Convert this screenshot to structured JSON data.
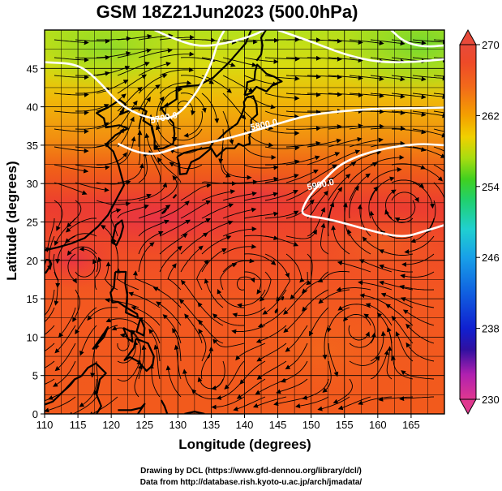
{
  "title": "GSM 18Z21Jun2023 (500.0hPa)",
  "credits": [
    "Drawing by DCL (https://www.gfd-dennou.org/library/dcl/)",
    "Data from http://database.rish.kyoto-u.ac.jp/arch/jmadata/"
  ],
  "map": {
    "xlabel": "Longitude (degrees)",
    "ylabel": "Latitude  (degrees)",
    "lon_range": [
      110,
      170
    ],
    "lat_range": [
      0,
      50
    ],
    "lon_ticks": [
      110,
      115,
      120,
      125,
      130,
      135,
      140,
      145,
      150,
      155,
      160,
      165
    ],
    "lat_ticks": [
      0,
      5,
      10,
      15,
      20,
      25,
      30,
      35,
      40,
      45
    ],
    "gridlines": true,
    "field": "temperature",
    "contour_labels": [
      {
        "text": "5700.0",
        "lon": 128,
        "lat": 38.2
      },
      {
        "text": "5800.0",
        "lon": 143,
        "lat": 37.3
      },
      {
        "text": "5900.0",
        "lon": 151.5,
        "lat": 29.5
      }
    ],
    "contours": [
      {
        "level": "5700.0",
        "points": [
          [
            110,
            45.8
          ],
          [
            115,
            45.6
          ],
          [
            118,
            43.5
          ],
          [
            121,
            40.5
          ],
          [
            124,
            39.0
          ],
          [
            127,
            38.3
          ],
          [
            130,
            38.8
          ],
          [
            133,
            42
          ],
          [
            135,
            45.5
          ],
          [
            136,
            48.5
          ],
          [
            137,
            50
          ]
        ]
      },
      {
        "level": "5800.0",
        "points": [
          [
            121,
            35.2
          ],
          [
            124,
            34.0
          ],
          [
            127,
            33.8
          ],
          [
            130,
            34.8
          ],
          [
            134,
            35.2
          ],
          [
            138,
            36.0
          ],
          [
            142,
            37.0
          ],
          [
            145,
            37.8
          ],
          [
            149,
            38.8
          ],
          [
            153,
            39.3
          ],
          [
            157,
            39.6
          ],
          [
            161,
            39.8
          ],
          [
            165,
            39.8
          ],
          [
            170,
            39.9
          ]
        ]
      },
      {
        "level": "5900.0",
        "points": [
          [
            170,
            35.0
          ],
          [
            166,
            35.2
          ],
          [
            161,
            34.6
          ],
          [
            157,
            33.6
          ],
          [
            154,
            32.3
          ],
          [
            152,
            30.5
          ],
          [
            150,
            28.8
          ],
          [
            148.5,
            26.5
          ],
          [
            149,
            25.8
          ],
          [
            152,
            25.5
          ],
          [
            156,
            24.6
          ],
          [
            160,
            23.6
          ],
          [
            164,
            23.0
          ],
          [
            167,
            23.8
          ],
          [
            170,
            24.6
          ]
        ]
      },
      {
        "level": "",
        "points": [
          [
            126.5,
            50
          ],
          [
            129,
            49
          ],
          [
            133,
            47.8
          ],
          [
            137,
            48.2
          ],
          [
            141,
            49.2
          ],
          [
            143,
            50
          ]
        ]
      },
      {
        "level": "",
        "points": [
          [
            145,
            50
          ],
          [
            150,
            48.5
          ],
          [
            155,
            46.8
          ],
          [
            160,
            45.8
          ],
          [
            165,
            45.8
          ],
          [
            170,
            46.2
          ]
        ]
      },
      {
        "level": "",
        "points": [
          [
            162,
            50
          ],
          [
            164,
            48.4
          ],
          [
            167,
            47.8
          ],
          [
            170,
            48.0
          ]
        ]
      }
    ],
    "coastlines": [
      [
        [
          110,
          21.3
        ],
        [
          112,
          21.7
        ],
        [
          114,
          22.2
        ],
        [
          116,
          22.9
        ],
        [
          118,
          24.4
        ],
        [
          119.5,
          25.9
        ],
        [
          120.5,
          27.5
        ],
        [
          121.9,
          29.8
        ],
        [
          121.4,
          31.4
        ],
        [
          121.1,
          32.4
        ],
        [
          120.3,
          34.2
        ],
        [
          119.2,
          35.1
        ],
        [
          120.6,
          36.3
        ],
        [
          122.5,
          37.2
        ],
        [
          121.2,
          37.6
        ],
        [
          119.2,
          37.3
        ],
        [
          118.9,
          38.5
        ],
        [
          117.8,
          39.2
        ],
        [
          119.5,
          39.9
        ],
        [
          121.3,
          40.9
        ],
        [
          122.2,
          40.3
        ],
        [
          121.3,
          39.0
        ],
        [
          123.5,
          39.8
        ],
        [
          124.5,
          39.8
        ],
        [
          125.3,
          39.4
        ],
        [
          124.8,
          38.2
        ],
        [
          126.1,
          37.5
        ],
        [
          126.5,
          35.8
        ],
        [
          126.5,
          34.5
        ],
        [
          127.8,
          34.6
        ],
        [
          129.3,
          35.2
        ],
        [
          129.5,
          36.5
        ],
        [
          129.3,
          37.9
        ],
        [
          128.3,
          38.8
        ],
        [
          127.5,
          39.8
        ],
        [
          128.6,
          40.3
        ],
        [
          129.8,
          41.0
        ],
        [
          129.8,
          42.5
        ],
        [
          131.4,
          42.7
        ],
        [
          133.1,
          42.8
        ],
        [
          135.3,
          43.8
        ],
        [
          137.7,
          45.8
        ],
        [
          140.2,
          48.3
        ],
        [
          141.0,
          50
        ]
      ],
      [
        [
          129.9,
          33.5
        ],
        [
          130.9,
          34.0
        ],
        [
          132.2,
          34.3
        ],
        [
          133.4,
          34.5
        ],
        [
          134.8,
          34.7
        ],
        [
          135.4,
          35.5
        ],
        [
          136.0,
          35.7
        ],
        [
          137.3,
          36.8
        ],
        [
          138.9,
          37.8
        ],
        [
          139.5,
          38.8
        ],
        [
          140.0,
          40.0
        ],
        [
          139.9,
          40.6
        ],
        [
          140.3,
          41.2
        ],
        [
          141.3,
          41.4
        ],
        [
          141.8,
          40.3
        ],
        [
          141.9,
          39.0
        ],
        [
          141.0,
          38.3
        ],
        [
          141.0,
          37.0
        ],
        [
          140.7,
          36.0
        ],
        [
          140.8,
          35.2
        ],
        [
          139.8,
          34.9
        ],
        [
          139.1,
          35.2
        ],
        [
          138.5,
          34.6
        ],
        [
          137.2,
          34.6
        ],
        [
          136.8,
          34.3
        ],
        [
          135.8,
          33.5
        ],
        [
          135.0,
          34.6
        ],
        [
          133.2,
          33.3
        ],
        [
          132.0,
          32.8
        ],
        [
          131.3,
          31.3
        ],
        [
          130.3,
          31.2
        ],
        [
          130.2,
          32.5
        ],
        [
          129.9,
          33.5
        ]
      ],
      [
        [
          140.0,
          41.5
        ],
        [
          140.3,
          42.3
        ],
        [
          140.4,
          43.2
        ],
        [
          141.5,
          43.5
        ],
        [
          141.6,
          44.6
        ],
        [
          141.9,
          45.5
        ],
        [
          143.3,
          44.3
        ],
        [
          144.5,
          43.9
        ],
        [
          145.6,
          43.3
        ],
        [
          144.3,
          42.9
        ],
        [
          143.3,
          42.0
        ],
        [
          141.8,
          42.6
        ],
        [
          141.0,
          41.8
        ],
        [
          140.0,
          41.5
        ]
      ],
      [
        [
          141.8,
          46.0
        ],
        [
          142.5,
          46.8
        ],
        [
          142.7,
          48.0
        ],
        [
          142.5,
          49.0
        ],
        [
          143.2,
          50.0
        ]
      ],
      [
        [
          120.1,
          22.3
        ],
        [
          120.7,
          24.6
        ],
        [
          121.6,
          25.2
        ],
        [
          121.8,
          24.4
        ],
        [
          121.4,
          23.1
        ],
        [
          120.8,
          22.0
        ],
        [
          120.1,
          22.3
        ]
      ],
      [
        [
          120.6,
          18.5
        ],
        [
          120.4,
          16.5
        ],
        [
          119.9,
          15.8
        ],
        [
          120.2,
          14.5
        ],
        [
          121.0,
          14.6
        ],
        [
          122.0,
          14.0
        ],
        [
          123.9,
          13.0
        ],
        [
          124.0,
          12.5
        ],
        [
          122.2,
          13.2
        ],
        [
          122.4,
          15.5
        ],
        [
          122.1,
          17.0
        ],
        [
          122.2,
          18.5
        ],
        [
          120.6,
          18.5
        ]
      ],
      [
        [
          124.4,
          12.5
        ],
        [
          125.0,
          11.2
        ],
        [
          124.9,
          10.2
        ],
        [
          123.8,
          10.7
        ],
        [
          124.4,
          12.5
        ]
      ],
      [
        [
          121.8,
          11.2
        ],
        [
          123.0,
          10.7
        ],
        [
          123.2,
          9.4
        ],
        [
          122.5,
          9.8
        ],
        [
          121.8,
          11.2
        ]
      ],
      [
        [
          123.7,
          9.8
        ],
        [
          125.5,
          9.2
        ],
        [
          126.4,
          7.5
        ],
        [
          126.2,
          6.3
        ],
        [
          125.3,
          5.6
        ],
        [
          124.1,
          6.8
        ],
        [
          122.8,
          7.4
        ],
        [
          122.0,
          7.0
        ],
        [
          123.4,
          8.6
        ],
        [
          123.7,
          9.8
        ]
      ],
      [
        [
          117.2,
          8.4
        ],
        [
          118.9,
          10.0
        ],
        [
          119.5,
          11.3
        ],
        [
          118.7,
          10.2
        ],
        [
          117.2,
          8.4
        ]
      ],
      [
        [
          108.8,
          15.4
        ],
        [
          109.3,
          13.0
        ],
        [
          109.1,
          11.6
        ],
        [
          110,
          13.0
        ]
      ],
      [
        [
          110.2,
          20.1
        ],
        [
          110.8,
          20.0
        ],
        [
          111.0,
          19.5
        ],
        [
          110.2,
          18.4
        ],
        [
          109.5,
          18.2
        ],
        [
          110.2,
          20.1
        ]
      ],
      [
        [
          115.5,
          4.9
        ],
        [
          116.5,
          6.0
        ],
        [
          117.7,
          6.6
        ],
        [
          119.2,
          5.3
        ],
        [
          118.3,
          4.5
        ],
        [
          117.8,
          2.5
        ],
        [
          118.5,
          1.0
        ],
        [
          117.8,
          0.0
        ]
      ],
      [
        [
          110,
          1.2
        ],
        [
          111.2,
          1.6
        ],
        [
          113.0,
          3.1
        ],
        [
          114.5,
          4.5
        ],
        [
          115.5,
          4.9
        ]
      ],
      [
        [
          124.0,
          0.0
        ],
        [
          125.0,
          1.3
        ],
        [
          124.5,
          0.8
        ],
        [
          123.0,
          0.5
        ],
        [
          121.0,
          0.5
        ]
      ],
      [
        [
          127.5,
          1.8
        ],
        [
          128.0,
          1.0
        ],
        [
          128.4,
          0.0
        ]
      ],
      [
        [
          131.0,
          0.0
        ],
        [
          132.5,
          0.3
        ],
        [
          134.0,
          0.0
        ]
      ],
      [
        [
          144.6,
          13.3
        ],
        [
          144.9,
          13.6
        ],
        [
          144.7,
          13.2
        ],
        [
          144.6,
          13.3
        ]
      ],
      [
        [
          145.6,
          15.0
        ],
        [
          145.8,
          15.2
        ],
        [
          145.7,
          14.9
        ],
        [
          145.6,
          15.0
        ]
      ],
      [
        [
          127.6,
          26.1
        ],
        [
          128.3,
          26.7
        ],
        [
          128.0,
          26.3
        ],
        [
          127.6,
          26.1
        ]
      ],
      [
        [
          129.3,
          28.1
        ],
        [
          129.7,
          28.5
        ],
        [
          129.4,
          28.2
        ],
        [
          129.3,
          28.1
        ]
      ],
      [
        [
          134.5,
          7.3
        ],
        [
          134.7,
          7.6
        ],
        [
          134.6,
          7.4
        ],
        [
          134.5,
          7.3
        ]
      ]
    ]
  },
  "colorbar": {
    "ticks": [
      "270",
      "262",
      "254",
      "246",
      "238",
      "230"
    ],
    "range": [
      230,
      270
    ],
    "colors": [
      "#e0388f",
      "#b020b0",
      "#3010a0",
      "#1020d0",
      "#1060e0",
      "#18a0e8",
      "#20d0d0",
      "#20d070",
      "#40d020",
      "#a8dd10",
      "#f0d000",
      "#f4a000",
      "#f26a1a",
      "#ee4a28",
      "#e84a3a"
    ]
  }
}
